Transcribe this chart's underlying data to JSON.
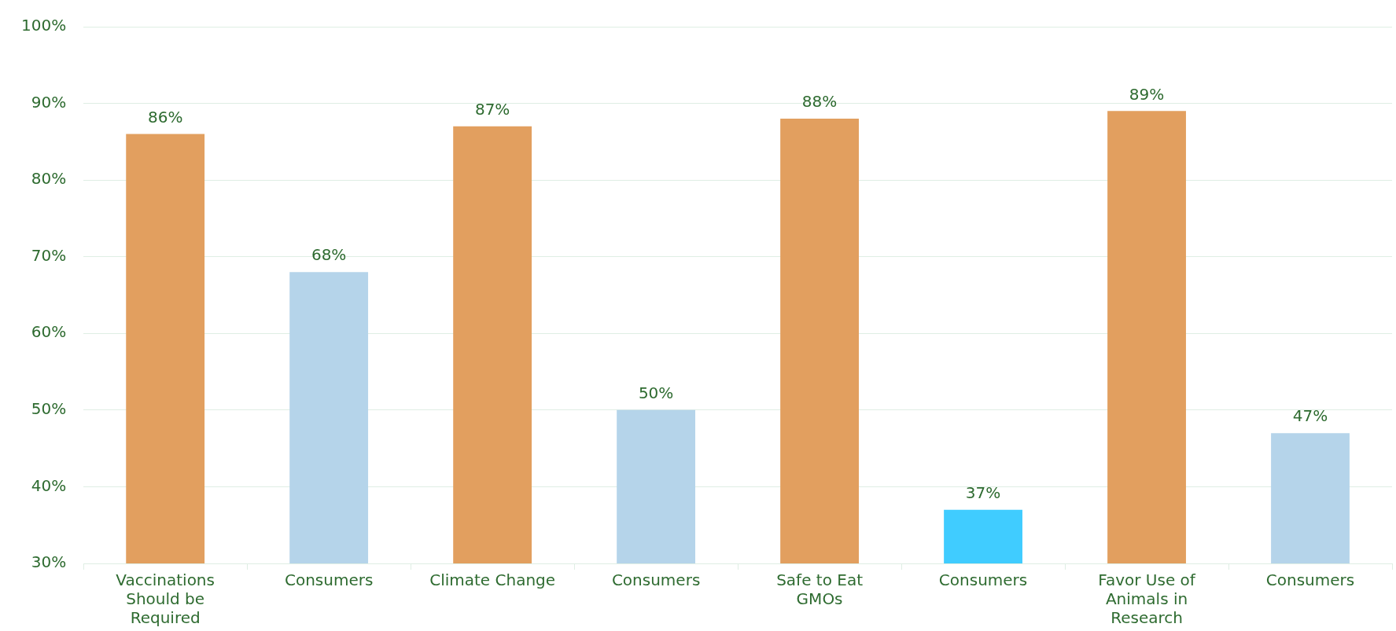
{
  "chart_data": {
    "type": "bar",
    "categories": [
      "Vaccinations Should be Required",
      "Consumers",
      "Climate Change",
      "Consumers",
      "Safe to Eat GMOs",
      "Consumers",
      "Favor Use of Animals in Research",
      "Consumers"
    ],
    "values": [
      86,
      68,
      87,
      50,
      88,
      37,
      89,
      47
    ],
    "colors": [
      "#e29f5f",
      "#b5d4ea",
      "#e29f5f",
      "#b5d4ea",
      "#e29f5f",
      "#40ccff",
      "#e29f5f",
      "#b5d4ea"
    ],
    "value_labels": [
      "86%",
      "68%",
      "87%",
      "50%",
      "88%",
      "37%",
      "89%",
      "47%"
    ],
    "ylim": [
      30,
      100
    ],
    "yticks": [
      {
        "value": 30,
        "label": "30%"
      },
      {
        "value": 40,
        "label": "40%"
      },
      {
        "value": 50,
        "label": "50%"
      },
      {
        "value": 60,
        "label": "60%"
      },
      {
        "value": 70,
        "label": "70%"
      },
      {
        "value": 80,
        "label": "80%"
      },
      {
        "value": 90,
        "label": "90%"
      },
      {
        "value": 100,
        "label": "100%"
      }
    ],
    "grid": "y",
    "legend": false
  }
}
